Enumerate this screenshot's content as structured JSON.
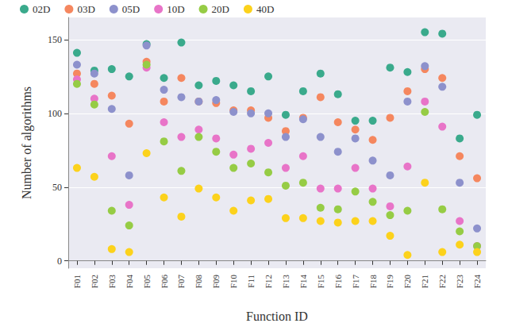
{
  "chart_data": {
    "type": "scatter",
    "x_label": "Function ID",
    "y_label": "Number of algorithms",
    "categories": [
      "F01",
      "F02",
      "F03",
      "F04",
      "F05",
      "F06",
      "F07",
      "F08",
      "F09",
      "F10",
      "F11",
      "F12",
      "F13",
      "F14",
      "F15",
      "F16",
      "F17",
      "F18",
      "F19",
      "F20",
      "F21",
      "F22",
      "F23",
      "F24"
    ],
    "series": [
      {
        "name": "02D",
        "color": "#3aaa8c",
        "values": [
          141,
          129,
          130,
          125,
          147,
          124,
          148,
          119,
          122,
          119,
          115,
          125,
          99,
          115,
          127,
          113,
          95,
          95,
          131,
          128,
          155,
          154,
          83,
          99
        ]
      },
      {
        "name": "03D",
        "color": "#f5875f",
        "values": [
          127,
          120,
          112,
          93,
          135,
          108,
          124,
          108,
          107,
          102,
          102,
          97,
          88,
          97,
          111,
          94,
          89,
          82,
          97,
          115,
          130,
          124,
          71,
          56
        ]
      },
      {
        "name": "05D",
        "color": "#8d91cc",
        "values": [
          133,
          127,
          103,
          58,
          146,
          116,
          111,
          108,
          109,
          101,
          100,
          100,
          84,
          96,
          84,
          74,
          83,
          68,
          58,
          108,
          132,
          118,
          53,
          22
        ]
      },
      {
        "name": "10D",
        "color": "#e874c8",
        "values": [
          123,
          110,
          71,
          38,
          131,
          94,
          84,
          89,
          83,
          72,
          76,
          80,
          63,
          71,
          49,
          49,
          63,
          49,
          37,
          64,
          108,
          91,
          27,
          10
        ]
      },
      {
        "name": "20D",
        "color": "#96cc45",
        "values": [
          120,
          106,
          34,
          24,
          133,
          81,
          61,
          84,
          74,
          63,
          66,
          60,
          51,
          53,
          36,
          35,
          47,
          40,
          31,
          34,
          101,
          35,
          20,
          10
        ]
      },
      {
        "name": "40D",
        "color": "#fcd21c",
        "values": [
          63,
          57,
          8,
          6,
          73,
          43,
          30,
          49,
          43,
          34,
          41,
          42,
          29,
          29,
          27,
          26,
          27,
          27,
          17,
          4,
          53,
          6,
          11,
          6
        ]
      }
    ],
    "ylim": [
      -5,
      165
    ],
    "yticks": [
      0,
      50,
      100,
      150
    ],
    "grid": true,
    "legend": "top",
    "marker": "circle"
  }
}
